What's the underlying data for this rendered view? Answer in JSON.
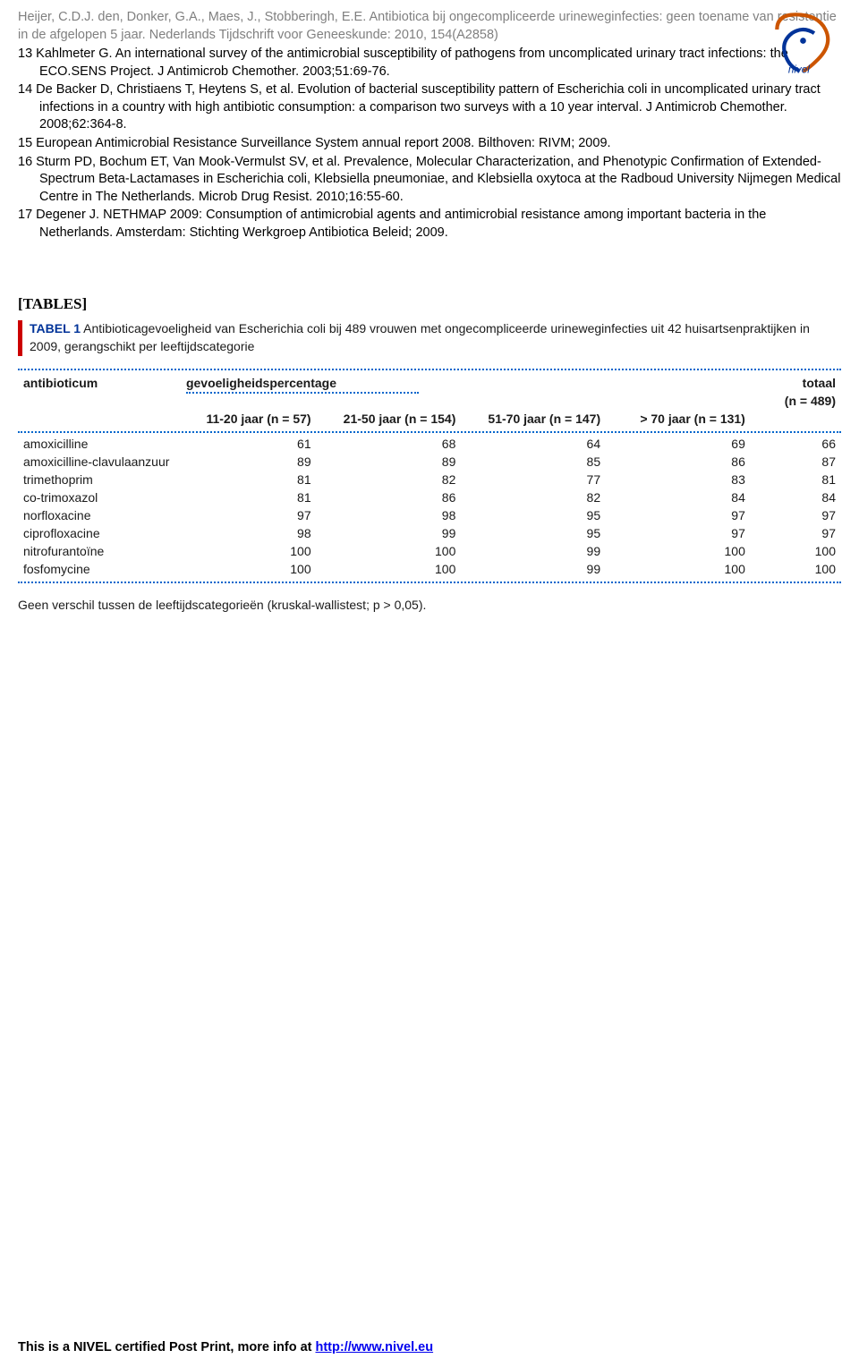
{
  "header": {
    "citation": "Heijer, C.D.J. den, Donker, G.A., Maes, J., Stobberingh, E.E. Antibiotica bij ongecompliceerde urineweginfecties: geen toename van resistentie in de afgelopen 5 jaar. Nederlands Tijdschrift voor Geneeskunde: 2010, 154(A2858)"
  },
  "references": [
    "13 Kahlmeter G. An international survey of the antimicrobial susceptibility of pathogens from uncomplicated urinary tract infections: the ECO.SENS Project. J Antimicrob Chemother. 2003;51:69-76.",
    "14 De Backer D, Christiaens T, Heytens S, et al. Evolution of bacterial susceptibility pattern of Escherichia coli in uncomplicated urinary tract infections in a country with high antibiotic consumption: a comparison two surveys with a 10 year interval. J Antimicrob Chemother. 2008;62:364-8.",
    "15 European Antimicrobial Resistance Surveillance System annual report 2008. Bilthoven: RIVM; 2009.",
    "16 Sturm PD, Bochum ET, Van Mook-Vermulst SV, et al. Prevalence, Molecular Characterization, and Phenotypic Confirmation of Extended- Spectrum Beta-Lactamases in Escherichia coli, Klebsiella pneumoniae, and Klebsiella oxytoca at the Radboud University Nijmegen Medical Centre in The Netherlands. Microb Drug Resist. 2010;16:55-60.",
    "17 Degener J. NETHMAP 2009: Consumption of antimicrobial agents and antimicrobial resistance among important bacteria in the Netherlands. Amsterdam: Stichting Werkgroep Antibiotica Beleid; 2009."
  ],
  "tables_heading": "[TABLES]",
  "table1": {
    "caption_label": "TABEL 1",
    "caption_text": " Antibioticagevoeligheid van Escherichia coli bij 489 vrouwen met ongecompliceerde urineweginfecties uit 42 huisartsenpraktijken in 2009, gerangschikt per leeftijdscategorie",
    "col_antibiotic_header": "antibioticum",
    "col_group_header": "gevoeligheidspercentage",
    "col_total_header": "totaal",
    "col_total_n": "(n = 489)",
    "age_headers": [
      "11-20 jaar (n = 57)",
      "21-50 jaar (n = 154)",
      "51-70 jaar (n = 147)",
      "> 70 jaar (n = 131)"
    ],
    "rows": [
      {
        "name": "amoxicilline",
        "vals": [
          "61",
          "68",
          "64",
          "69"
        ],
        "total": "66"
      },
      {
        "name": "amoxicilline-clavulaanzuur",
        "vals": [
          "89",
          "89",
          "85",
          "86"
        ],
        "total": "87"
      },
      {
        "name": "trimethoprim",
        "vals": [
          "81",
          "82",
          "77",
          "83"
        ],
        "total": "81"
      },
      {
        "name": "co-trimoxazol",
        "vals": [
          "81",
          "86",
          "82",
          "84"
        ],
        "total": "84"
      },
      {
        "name": "norfloxacine",
        "vals": [
          "97",
          "98",
          "95",
          "97"
        ],
        "total": "97"
      },
      {
        "name": "ciprofloxacine",
        "vals": [
          "98",
          "99",
          "95",
          "97"
        ],
        "total": "97"
      },
      {
        "name": "nitrofurantoïne",
        "vals": [
          "100",
          "100",
          "99",
          "100"
        ],
        "total": "100"
      },
      {
        "name": "fosfomycine",
        "vals": [
          "100",
          "100",
          "99",
          "100"
        ],
        "total": "100"
      }
    ],
    "footnote": "Geen verschil tussen de leeftijdscategorieën (kruskal-wallistest; p > 0,05)."
  },
  "footer": {
    "text": "This is a NIVEL certified Post Print, more info at ",
    "link_text": "http://www.nivel.eu"
  },
  "colors": {
    "header_gray": "#808080",
    "accent_red": "#cc0000",
    "caption_blue": "#003399",
    "dotted_blue": "#0066cc",
    "link_blue": "#0000ee"
  }
}
